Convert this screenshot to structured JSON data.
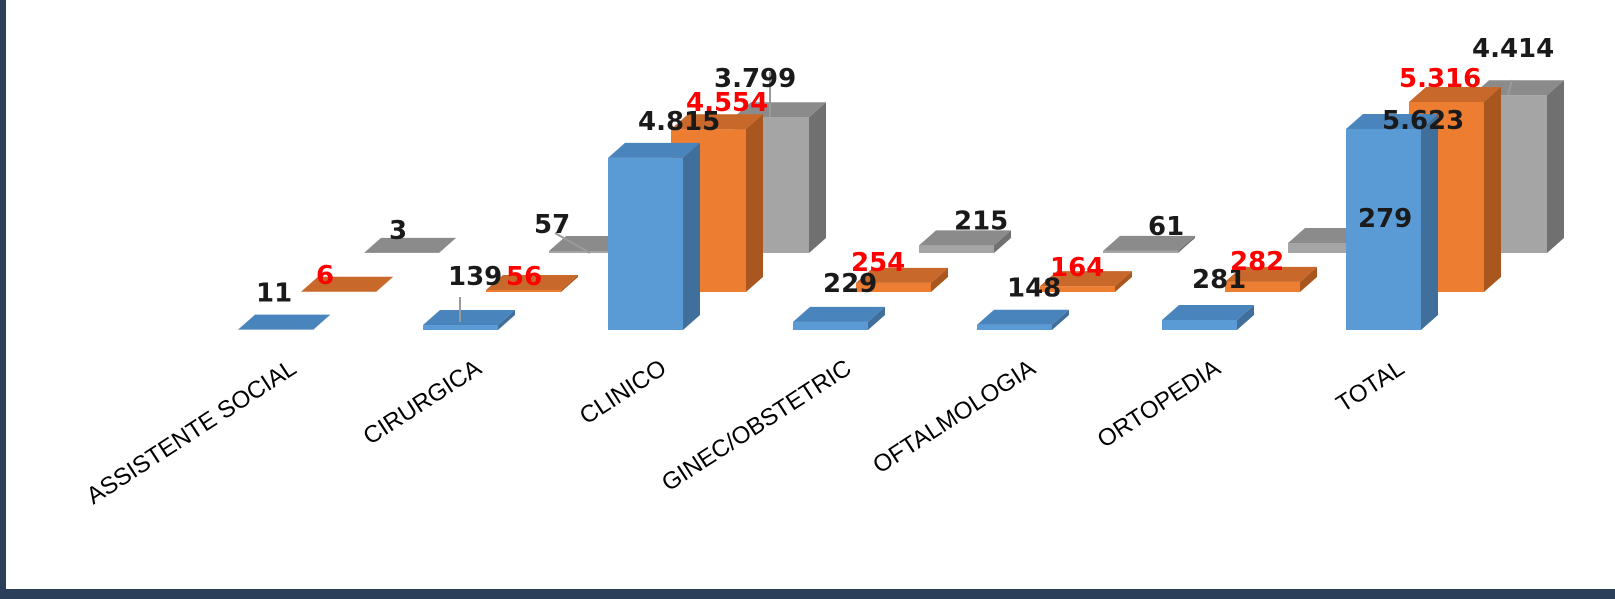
{
  "colors": {
    "series1": {
      "front": "#5b9bd5",
      "side": "#3f6f9a",
      "top": "#4a84bd"
    },
    "series2": {
      "front": "#ed7d31",
      "side": "#a9571f",
      "top": "#c8682a"
    },
    "series3": {
      "front": "#a5a5a5",
      "side": "#707070",
      "top": "#8b8b8b"
    },
    "label_black": "#1a1a1a",
    "label_red": "#ff0000"
  },
  "chart_data": {
    "type": "bar",
    "style": "3d-clustered-column",
    "title": "",
    "xlabel": "",
    "ylabel": "",
    "categories": [
      "ASSISTENTE SOCIAL",
      "CIRURGICA",
      "CLINICO",
      "GINEC/OBSTETRIC",
      "OFTALMOLOGIA",
      "ORTOPEDIA",
      "TOTAL"
    ],
    "series": [
      {
        "values": [
          11,
          139,
          4815,
          229,
          148,
          281,
          5623
        ],
        "labels": [
          "11",
          "139",
          "4.815",
          "229",
          "148",
          "281",
          "5.623"
        ],
        "label_color": "black"
      },
      {
        "values": [
          6,
          56,
          4554,
          254,
          164,
          282,
          5316
        ],
        "labels": [
          "6",
          "56",
          "4.554",
          "254",
          "164",
          "282",
          "5.316"
        ],
        "label_color": "red"
      },
      {
        "values": [
          3,
          57,
          3799,
          215,
          61,
          279,
          4414
        ],
        "labels": [
          "3",
          "57",
          "3.799",
          "215",
          "61",
          "279",
          "4.414"
        ],
        "label_color": "black"
      }
    ],
    "grid": false,
    "legend": "none"
  }
}
